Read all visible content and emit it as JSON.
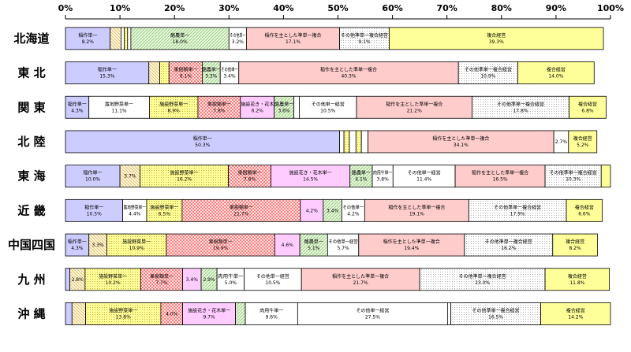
{
  "chart_data": {
    "type": "bar",
    "orientation": "horizontal-stacked-100",
    "title": "",
    "xlabel": "",
    "ylabel": "",
    "xlim": [
      0,
      100
    ],
    "x_ticks": [
      "0%",
      "10%",
      "20%",
      "30%",
      "40%",
      "50%",
      "60%",
      "70%",
      "80%",
      "90%",
      "100%"
    ],
    "grid": false,
    "legend": "none",
    "colors": {
      "rice": "#ccccff",
      "field": "#ffffcc",
      "openveg": "#ffffff",
      "facilityveg": "#ffff99",
      "fruit": "#ff9999",
      "flowers": "#ffccff",
      "dairy": "#ccffcc",
      "beef": "#ffffff",
      "other_single": "#ffffff",
      "rice_complex": "#ffcccc",
      "other_complex": "#e6e6e6",
      "complex": "#ffff99",
      "misc": "#ffffff"
    },
    "categories": [
      "北海道",
      "東 北",
      "関 東",
      "北 陸",
      "東 海",
      "近 畿",
      "中国四国",
      "九 州",
      "沖 縄"
    ],
    "rows": [
      {
        "region": "北海道",
        "segments": [
          {
            "kind": "rice",
            "value": 8.2,
            "label": "稲作単一",
            "value_label": "8.2%"
          },
          {
            "kind": "field",
            "value": 2.0,
            "label": "",
            "value_label": ""
          },
          {
            "kind": "misc",
            "value": 0.6,
            "label": "",
            "value_label": ""
          },
          {
            "kind": "facilityveg",
            "value": 0.6,
            "label": "",
            "value_label": ""
          },
          {
            "kind": "misc",
            "value": 0.6,
            "label": "",
            "value_label": ""
          },
          {
            "kind": "dairy",
            "value": 18.0,
            "label": "酪農単一",
            "value_label": "18.0%"
          },
          {
            "kind": "other_single",
            "value": 3.2,
            "label": "その他単一",
            "value_label": "3.2%"
          },
          {
            "kind": "rice_complex",
            "value": 17.1,
            "label": "稲作を主とした準単一複合",
            "value_label": "17.1%"
          },
          {
            "kind": "other_complex",
            "value": 9.1,
            "label": "その他準単一複合経営",
            "value_label": "9.1%"
          },
          {
            "kind": "complex",
            "value": 39.3,
            "label": "複合経営",
            "value_label": "39.3%"
          }
        ]
      },
      {
        "region": "東 北",
        "segments": [
          {
            "kind": "rice",
            "value": 15.3,
            "label": "稲作単一",
            "value_label": "15.3%"
          },
          {
            "kind": "field",
            "value": 2.0,
            "label": "",
            "value_label": ""
          },
          {
            "kind": "facilityveg",
            "value": 1.7,
            "label": "",
            "value_label": ""
          },
          {
            "kind": "fruit",
            "value": 6.1,
            "label": "果樹類単一",
            "value_label": "6.1%"
          },
          {
            "kind": "dairy",
            "value": 3.3,
            "label": "酪農単一",
            "value_label": "3.3%"
          },
          {
            "kind": "other_single",
            "value": 3.4,
            "label": "その他単一",
            "value_label": "3.4%"
          },
          {
            "kind": "rice_complex",
            "value": 40.3,
            "label": "稲作を主とした準単一複合",
            "value_label": "40.3%"
          },
          {
            "kind": "other_complex",
            "value": 10.9,
            "label": "その他準単一複合経営",
            "value_label": "10.9%"
          },
          {
            "kind": "complex",
            "value": 14.0,
            "label": "複合経営",
            "value_label": "14.0%"
          }
        ]
      },
      {
        "region": "関 東",
        "segments": [
          {
            "kind": "rice",
            "value": 4.3,
            "label": "稲作単一",
            "value_label": "4.3%"
          },
          {
            "kind": "openveg",
            "value": 11.1,
            "label": "露地野菜単一",
            "value_label": "11.1%"
          },
          {
            "kind": "facilityveg",
            "value": 8.9,
            "label": "施設野菜単一",
            "value_label": "8.9%"
          },
          {
            "kind": "fruit",
            "value": 7.8,
            "label": "果樹類単一",
            "value_label": "7.8%"
          },
          {
            "kind": "flowers",
            "value": 6.2,
            "label": "施設花き・花木",
            "value_label": "6.2%"
          },
          {
            "kind": "dairy",
            "value": 3.6,
            "label": "酪農単一",
            "value_label": "3.6%"
          },
          {
            "kind": "misc",
            "value": 1.0,
            "label": "",
            "value_label": ""
          },
          {
            "kind": "other_single",
            "value": 10.5,
            "label": "その他単一経営",
            "value_label": "10.5%"
          },
          {
            "kind": "rice_complex",
            "value": 21.2,
            "label": "稲作を主とした準単一複合",
            "value_label": "21.2%"
          },
          {
            "kind": "other_complex",
            "value": 17.8,
            "label": "その他準単一複合経営",
            "value_label": "17.8%"
          },
          {
            "kind": "complex",
            "value": 6.8,
            "label": "複合経営",
            "value_label": "6.8%"
          }
        ]
      },
      {
        "region": "北 陸",
        "segments": [
          {
            "kind": "rice",
            "value": 50.3,
            "label": "稲作単一",
            "value_label": "50.3%"
          },
          {
            "kind": "misc",
            "value": 0.8,
            "label": "",
            "value_label": ""
          },
          {
            "kind": "facilityveg",
            "value": 1.0,
            "label": "",
            "value_label": ""
          },
          {
            "kind": "misc",
            "value": 1.2,
            "label": "",
            "value_label": ""
          },
          {
            "kind": "facilityveg",
            "value": 1.0,
            "label": "",
            "value_label": ""
          },
          {
            "kind": "misc",
            "value": 1.2,
            "label": "",
            "value_label": ""
          },
          {
            "kind": "rice_complex",
            "value": 34.1,
            "label": "稲作を主とした準単一複合",
            "value_label": "34.1%"
          },
          {
            "kind": "other_single",
            "value": 2.7,
            "label": "",
            "value_label": "2.7%"
          },
          {
            "kind": "complex",
            "value": 5.2,
            "label": "複合経営",
            "value_label": "5.2%"
          }
        ]
      },
      {
        "region": "東 海",
        "segments": [
          {
            "kind": "rice",
            "value": 10.0,
            "label": "稲作単一",
            "value_label": "10.0%"
          },
          {
            "kind": "field",
            "value": 3.7,
            "label": "",
            "value_label": "3.7%"
          },
          {
            "kind": "facilityveg",
            "value": 16.2,
            "label": "施設野菜単一",
            "value_label": "16.2%"
          },
          {
            "kind": "fruit",
            "value": 7.8,
            "label": "果樹類単一",
            "value_label": "7.8%"
          },
          {
            "kind": "flowers",
            "value": 14.5,
            "label": "施設花き・花木単一",
            "value_label": "14.5%"
          },
          {
            "kind": "dairy",
            "value": 4.1,
            "label": "酪農単一",
            "value_label": "4.1%"
          },
          {
            "kind": "beef",
            "value": 3.8,
            "label": "肉用牛単一",
            "value_label": "3.8%"
          },
          {
            "kind": "other_single",
            "value": 11.4,
            "label": "その他単一経営",
            "value_label": "11.4%"
          },
          {
            "kind": "rice_complex",
            "value": 16.5,
            "label": "稲作を主とした準単一複合",
            "value_label": "16.5%"
          },
          {
            "kind": "other_complex",
            "value": 10.3,
            "label": "その他準単一複合経営",
            "value_label": "10.3%"
          },
          {
            "kind": "complex",
            "value": 1.7,
            "label": "",
            "value_label": ""
          }
        ]
      },
      {
        "region": "近 畿",
        "segments": [
          {
            "kind": "rice",
            "value": 10.5,
            "label": "稲作単一",
            "value_label": "10.5%"
          },
          {
            "kind": "openveg",
            "value": 4.4,
            "label": "露地野菜単一",
            "value_label": "4.4%"
          },
          {
            "kind": "facilityveg",
            "value": 6.5,
            "label": "施設野菜単一",
            "value_label": "6.5%"
          },
          {
            "kind": "fruit",
            "value": 21.7,
            "label": "果樹類単一",
            "value_label": "21.7%"
          },
          {
            "kind": "flowers",
            "value": 4.2,
            "label": "",
            "value_label": "4.2%"
          },
          {
            "kind": "dairy",
            "value": 3.4,
            "label": "",
            "value_label": "3.4%"
          },
          {
            "kind": "other_single",
            "value": 4.2,
            "label": "その他単一",
            "value_label": "4.2%"
          },
          {
            "kind": "rice_complex",
            "value": 19.1,
            "label": "稲作を主とした準単一複合",
            "value_label": "19.1%"
          },
          {
            "kind": "other_complex",
            "value": 17.9,
            "label": "その他準単一複合経営",
            "value_label": "17.9%"
          },
          {
            "kind": "complex",
            "value": 6.6,
            "label": "複合経営",
            "value_label": "6.6%"
          }
        ]
      },
      {
        "region": "中国四国",
        "segments": [
          {
            "kind": "rice",
            "value": 4.3,
            "label": "稲作単一",
            "value_label": "4.3%"
          },
          {
            "kind": "field",
            "value": 3.3,
            "label": "",
            "value_label": "3.3%"
          },
          {
            "kind": "facilityveg",
            "value": 10.9,
            "label": "施設野菜単一",
            "value_label": "10.9%"
          },
          {
            "kind": "fruit",
            "value": 19.9,
            "label": "果樹類単一",
            "value_label": "19.9%"
          },
          {
            "kind": "flowers",
            "value": 4.6,
            "label": "",
            "value_label": "4.6%"
          },
          {
            "kind": "dairy",
            "value": 5.1,
            "label": "酪農単一",
            "value_label": "5.1%"
          },
          {
            "kind": "other_single",
            "value": 5.7,
            "label": "その他単一経営",
            "value_label": "5.7%"
          },
          {
            "kind": "rice_complex",
            "value": 19.4,
            "label": "稲作を主とした準単一複合",
            "value_label": "19.4%"
          },
          {
            "kind": "other_complex",
            "value": 16.2,
            "label": "その他準単一複合経営",
            "value_label": "16.2%"
          },
          {
            "kind": "complex",
            "value": 8.2,
            "label": "複合経営",
            "value_label": "8.2%"
          }
        ]
      },
      {
        "region": "九 州",
        "segments": [
          {
            "kind": "rice",
            "value": 0.8,
            "label": "",
            "value_label": ""
          },
          {
            "kind": "field",
            "value": 2.8,
            "label": "",
            "value_label": "2.8%"
          },
          {
            "kind": "facilityveg",
            "value": 10.2,
            "label": "施設野菜単一",
            "value_label": "10.2%"
          },
          {
            "kind": "fruit",
            "value": 7.7,
            "label": "果樹類単一",
            "value_label": "7.7%"
          },
          {
            "kind": "flowers",
            "value": 3.4,
            "label": "",
            "value_label": "3.4%"
          },
          {
            "kind": "dairy",
            "value": 2.9,
            "label": "",
            "value_label": "2.9%"
          },
          {
            "kind": "beef",
            "value": 5.0,
            "label": "肉用牛単一",
            "value_label": "5.0%"
          },
          {
            "kind": "other_single",
            "value": 10.5,
            "label": "その他単一経営",
            "value_label": "10.5%"
          },
          {
            "kind": "rice_complex",
            "value": 21.7,
            "label": "稲作を主とした準単一複合",
            "value_label": "21.7%"
          },
          {
            "kind": "other_complex",
            "value": 23.0,
            "label": "その他準単一複合経営",
            "value_label": "23.0%"
          },
          {
            "kind": "complex",
            "value": 11.8,
            "label": "複合経営",
            "value_label": "11.8%"
          }
        ]
      },
      {
        "region": "沖 縄",
        "segments": [
          {
            "kind": "rice",
            "value": 1.2,
            "label": "",
            "value_label": ""
          },
          {
            "kind": "field",
            "value": 2.5,
            "label": "",
            "value_label": ""
          },
          {
            "kind": "facilityveg",
            "value": 13.8,
            "label": "施設野菜単一",
            "value_label": "13.8%"
          },
          {
            "kind": "fruit",
            "value": 4.0,
            "label": "",
            "value_label": "4.0%"
          },
          {
            "kind": "flowers",
            "value": 9.7,
            "label": "施設花き・花木単一",
            "value_label": "9.7%"
          },
          {
            "kind": "dairy",
            "value": 1.8,
            "label": "",
            "value_label": ""
          },
          {
            "kind": "beef",
            "value": 9.6,
            "label": "肉用牛単一",
            "value_label": "9.6%"
          },
          {
            "kind": "other_single",
            "value": 27.5,
            "label": "その他単一経営",
            "value_label": "27.5%"
          },
          {
            "kind": "misc",
            "value": 0.6,
            "label": "",
            "value_label": ""
          },
          {
            "kind": "other_complex",
            "value": 16.5,
            "label": "その他準単一複合経営",
            "value_label": "16.5%"
          },
          {
            "kind": "complex",
            "value": 14.2,
            "label": "複合経営",
            "value_label": "14.2%"
          }
        ]
      }
    ]
  }
}
